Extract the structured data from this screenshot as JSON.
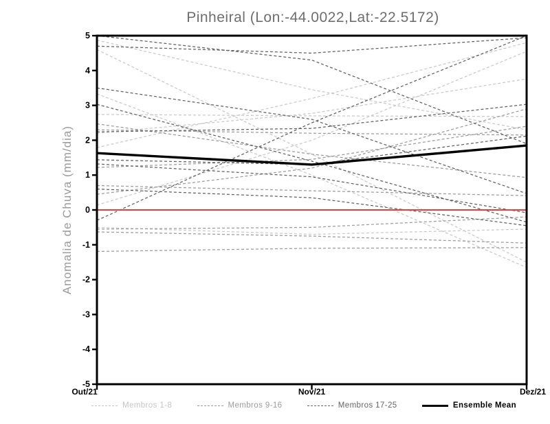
{
  "page": {
    "background": "#ffffff"
  },
  "chart_data": {
    "type": "line",
    "title": "Pinheiral (Lon:-44.0022,Lat:-22.5172)",
    "ylabel": "Anomalia de Chuva (mm/dia)",
    "x_categories": [
      "Out/21",
      "Nov/21",
      "Dez/21"
    ],
    "ylim": [
      -5,
      5
    ],
    "yticks": [
      -5,
      -4,
      -3,
      -2,
      -1,
      0,
      1,
      2,
      3,
      4,
      5
    ],
    "grid": "off",
    "legend_position": "bottom",
    "zero_line": {
      "value": 0,
      "color": "#e04040"
    },
    "groups": [
      {
        "label": "Membros 1-8",
        "color": "#c8c8c8",
        "style": "dashed",
        "members": [
          [
            4.87,
            3.45,
            2.3
          ],
          [
            4.6,
            1.6,
            -1.5
          ],
          [
            3.33,
            1.0,
            -1.65
          ],
          [
            2.74,
            2.7,
            2.68
          ],
          [
            1.79,
            3.2,
            4.8
          ],
          [
            0.14,
            2.0,
            4.55
          ],
          [
            -0.5,
            -0.7,
            -0.55
          ],
          [
            2.2,
            2.77,
            3.76
          ]
        ]
      },
      {
        "label": "Membros 9-16",
        "color": "#9a9a9a",
        "style": "dashed",
        "members": [
          [
            2.47,
            1.6,
            0.93
          ],
          [
            2.3,
            2.2,
            2.15
          ],
          [
            1.22,
            1.45,
            2.4
          ],
          [
            0.7,
            0.55,
            0.41
          ],
          [
            -0.55,
            -0.5,
            -0.2
          ],
          [
            -0.63,
            -0.75,
            -0.95
          ],
          [
            -1.19,
            -1.1,
            -1.08
          ],
          [
            0.45,
            1.2,
            2.9
          ]
        ]
      },
      {
        "label": "Membros 17-25",
        "color": "#5f5f5f",
        "style": "dashed",
        "members": [
          [
            4.7,
            4.5,
            4.94
          ],
          [
            -0.3,
            2.5,
            5.0
          ],
          [
            5.0,
            4.3,
            1.9
          ],
          [
            3.03,
            1.4,
            -0.35
          ],
          [
            2.24,
            2.34,
            3.03
          ],
          [
            1.44,
            1.3,
            2.12
          ],
          [
            1.32,
            0.95,
            -0.08
          ],
          [
            3.5,
            2.6,
            0.47
          ],
          [
            0.6,
            0.35,
            -0.45
          ]
        ]
      }
    ],
    "mean": {
      "label": "Ensemble Mean",
      "color": "#000000",
      "style": "solid",
      "values": [
        1.63,
        1.3,
        1.85
      ]
    }
  }
}
